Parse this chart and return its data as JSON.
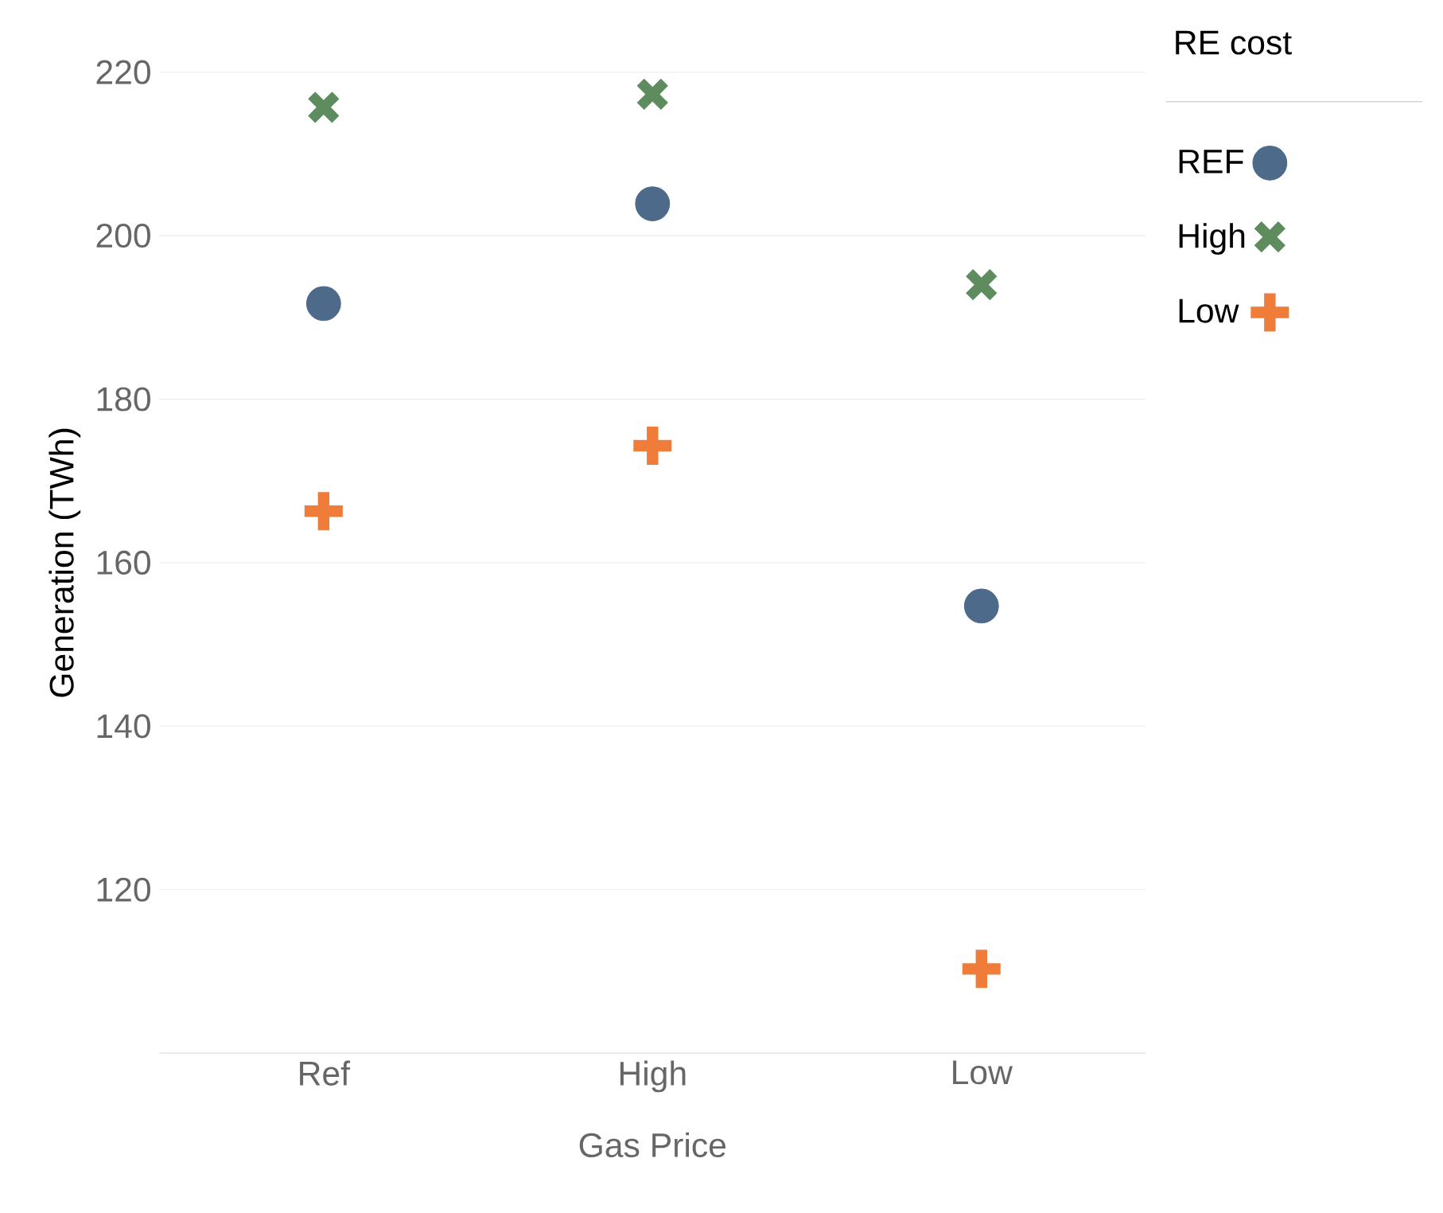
{
  "chart_data": {
    "type": "scatter",
    "xlabel": "Gas Price",
    "ylabel": "Generation (TWh)",
    "legend_title": "RE cost",
    "categories": [
      "Ref",
      "High",
      "Low"
    ],
    "series": [
      {
        "name": "REF",
        "color": "#4e6a8a",
        "marker": "circle",
        "values": [
          191.7,
          203.9,
          154.7
        ]
      },
      {
        "name": "High",
        "color": "#5e8c5e",
        "marker": "cross",
        "values": [
          215.7,
          217.3,
          194.0
        ]
      },
      {
        "name": "Low",
        "color": "#f07c3a",
        "values": [
          166.3,
          174.3,
          110.3
        ]
      }
    ],
    "ylim": [
      100,
      220
    ],
    "yticks": [
      120,
      140,
      160,
      180,
      200,
      220
    ],
    "grid": "y",
    "legend": "top right"
  }
}
